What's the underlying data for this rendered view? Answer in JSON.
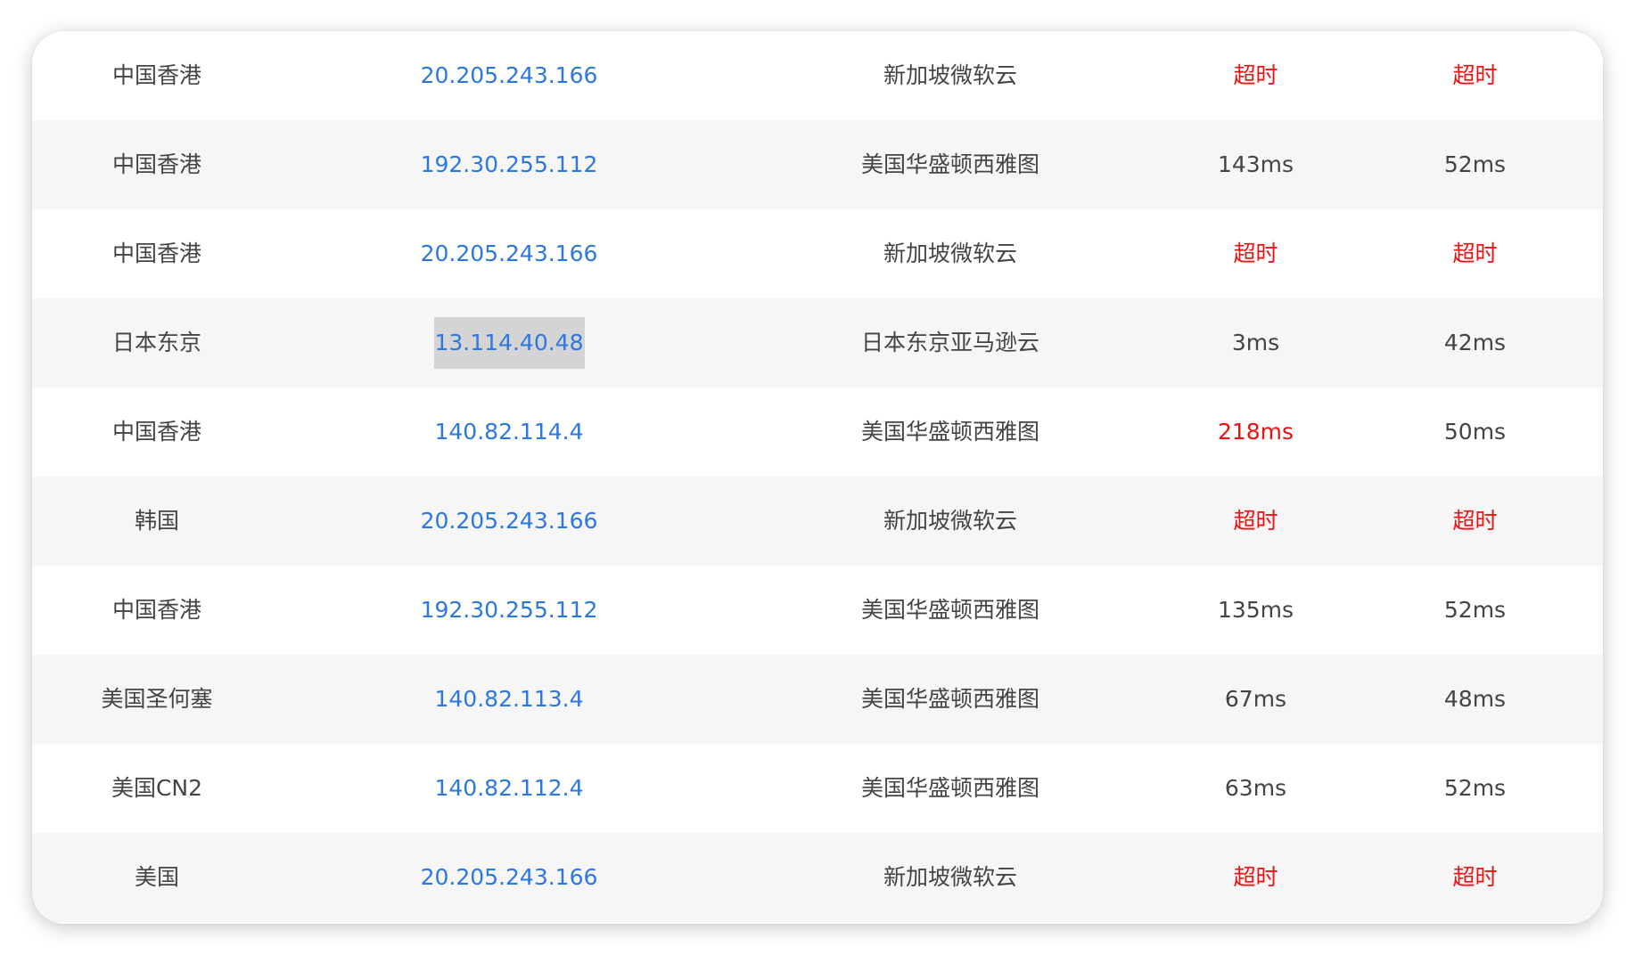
{
  "colors": {
    "link": "#2b78e4",
    "alert": "#ee1111",
    "text": "#444444",
    "stripe": "#f6f6f6"
  },
  "rows": [
    {
      "location": "中国香港",
      "ip": "20.205.243.166",
      "node": "新加坡微软云",
      "lat1": "超时",
      "lat2": "超时",
      "lat1_alert": true,
      "lat2_alert": true
    },
    {
      "location": "中国香港",
      "ip": "192.30.255.112",
      "node": "美国华盛顿西雅图",
      "lat1": "143ms",
      "lat2": "52ms",
      "lat1_alert": false,
      "lat2_alert": false
    },
    {
      "location": "中国香港",
      "ip": "20.205.243.166",
      "node": "新加坡微软云",
      "lat1": "超时",
      "lat2": "超时",
      "lat1_alert": true,
      "lat2_alert": true
    },
    {
      "location": "日本东京",
      "ip": "13.114.40.48",
      "node": "日本东京亚马逊云",
      "lat1": "3ms",
      "lat2": "42ms",
      "lat1_alert": false,
      "lat2_alert": false,
      "ip_selected": true
    },
    {
      "location": "中国香港",
      "ip": "140.82.114.4",
      "node": "美国华盛顿西雅图",
      "lat1": "218ms",
      "lat2": "50ms",
      "lat1_alert": true,
      "lat2_alert": false
    },
    {
      "location": "韩国",
      "ip": "20.205.243.166",
      "node": "新加坡微软云",
      "lat1": "超时",
      "lat2": "超时",
      "lat1_alert": true,
      "lat2_alert": true
    },
    {
      "location": "中国香港",
      "ip": "192.30.255.112",
      "node": "美国华盛顿西雅图",
      "lat1": "135ms",
      "lat2": "52ms",
      "lat1_alert": false,
      "lat2_alert": false
    },
    {
      "location": "美国圣何塞",
      "ip": "140.82.113.4",
      "node": "美国华盛顿西雅图",
      "lat1": "67ms",
      "lat2": "48ms",
      "lat1_alert": false,
      "lat2_alert": false
    },
    {
      "location": "美国CN2",
      "ip": "140.82.112.4",
      "node": "美国华盛顿西雅图",
      "lat1": "63ms",
      "lat2": "52ms",
      "lat1_alert": false,
      "lat2_alert": false
    },
    {
      "location": "美国",
      "ip": "20.205.243.166",
      "node": "新加坡微软云",
      "lat1": "超时",
      "lat2": "超时",
      "lat1_alert": true,
      "lat2_alert": true
    }
  ]
}
